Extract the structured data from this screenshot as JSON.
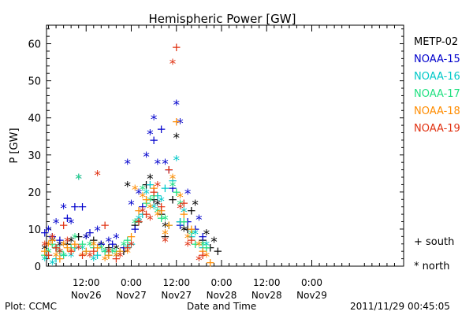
{
  "footer": {
    "plot_credit": "Plot: CCMC",
    "xlabel": "Date and Time",
    "timestamp": "2011/11/29 00:45:05"
  },
  "symbol_legend": [
    {
      "marker": "+",
      "label": "south"
    },
    {
      "marker": "*",
      "label": "north"
    }
  ],
  "chart_data": {
    "type": "scatter",
    "title": "Hemispheric Power [GW]",
    "xlabel": "Date and Time",
    "ylabel": "P [GW]",
    "ylim": [
      0,
      65
    ],
    "yticks": [
      0,
      10,
      20,
      30,
      40,
      50,
      60
    ],
    "x_hours": [
      0,
      96
    ],
    "xticks": [
      {
        "hour": 12,
        "time": "12:00",
        "date": "Nov26"
      },
      {
        "hour": 24,
        "time": "0:00",
        "date": "Nov27"
      },
      {
        "hour": 36,
        "time": "12:00",
        "date": "Nov27"
      },
      {
        "hour": 48,
        "time": "0:00",
        "date": "Nov28"
      },
      {
        "hour": 60,
        "time": "12:00",
        "date": "Nov28"
      },
      {
        "hour": 72,
        "time": "0:00",
        "date": "Nov29"
      }
    ],
    "grid": false,
    "legend_position": "right",
    "series": [
      {
        "name": "METP-02",
        "color": "#000000",
        "south": [
          [
            4,
            5
          ],
          [
            7,
            6
          ],
          [
            10,
            8
          ],
          [
            14,
            7
          ],
          [
            18,
            5
          ],
          [
            22,
            4
          ],
          [
            25,
            11
          ],
          [
            28,
            22
          ],
          [
            30,
            18
          ],
          [
            32,
            14
          ],
          [
            33,
            8
          ],
          [
            35,
            18
          ],
          [
            37,
            12
          ],
          [
            39,
            10
          ],
          [
            40,
            15
          ],
          [
            43,
            7
          ],
          [
            45,
            5
          ],
          [
            47,
            4
          ]
        ],
        "north": [
          [
            1,
            5
          ],
          [
            3,
            7
          ],
          [
            5,
            6
          ],
          [
            8,
            7
          ],
          [
            12,
            8
          ],
          [
            16,
            6
          ],
          [
            20,
            5
          ],
          [
            23,
            22
          ],
          [
            26,
            12
          ],
          [
            29,
            24
          ],
          [
            31,
            17
          ],
          [
            33,
            11
          ],
          [
            36,
            35
          ],
          [
            38,
            10
          ],
          [
            41,
            17
          ],
          [
            44,
            9
          ],
          [
            46,
            7
          ]
        ]
      },
      {
        "name": "NOAA-15",
        "color": "#0000cc",
        "south": [
          [
            1,
            9
          ],
          [
            3,
            8
          ],
          [
            5,
            7
          ],
          [
            7,
            13
          ],
          [
            9,
            16
          ],
          [
            11,
            16
          ],
          [
            13,
            9
          ],
          [
            16,
            6
          ],
          [
            19,
            6
          ],
          [
            22,
            5
          ],
          [
            25,
            10
          ],
          [
            27,
            16
          ],
          [
            30,
            34
          ],
          [
            32,
            37
          ],
          [
            34,
            26
          ],
          [
            35,
            21
          ],
          [
            37,
            11
          ],
          [
            39,
            12
          ],
          [
            41,
            10
          ],
          [
            43,
            8
          ]
        ],
        "north": [
          [
            2,
            10
          ],
          [
            4,
            12
          ],
          [
            6,
            16
          ],
          [
            8,
            12
          ],
          [
            10,
            24
          ],
          [
            12,
            8
          ],
          [
            15,
            10
          ],
          [
            18,
            7
          ],
          [
            20,
            8
          ],
          [
            23,
            28
          ],
          [
            24,
            17
          ],
          [
            26,
            20
          ],
          [
            28,
            30
          ],
          [
            29,
            36
          ],
          [
            30,
            40
          ],
          [
            31,
            28
          ],
          [
            33,
            28
          ],
          [
            36,
            44
          ],
          [
            37,
            39
          ],
          [
            39,
            20
          ],
          [
            42,
            13
          ]
        ]
      },
      {
        "name": "NOAA-16",
        "color": "#00c8c8",
        "south": [
          [
            2,
            3
          ],
          [
            4,
            2
          ],
          [
            6,
            3
          ],
          [
            9,
            5
          ],
          [
            12,
            4
          ],
          [
            15,
            3
          ],
          [
            18,
            3
          ],
          [
            21,
            4
          ],
          [
            24,
            6
          ],
          [
            27,
            14
          ],
          [
            29,
            22
          ],
          [
            31,
            19
          ],
          [
            33,
            21
          ],
          [
            35,
            23
          ],
          [
            37,
            12
          ],
          [
            40,
            8
          ],
          [
            43,
            5
          ]
        ],
        "north": [
          [
            1,
            2
          ],
          [
            3,
            1
          ],
          [
            5,
            4
          ],
          [
            8,
            3
          ],
          [
            11,
            5
          ],
          [
            14,
            2
          ],
          [
            17,
            4
          ],
          [
            20,
            3
          ],
          [
            23,
            5
          ],
          [
            26,
            13
          ],
          [
            28,
            20
          ],
          [
            30,
            16
          ],
          [
            32,
            18
          ],
          [
            36,
            29
          ],
          [
            38,
            15
          ],
          [
            41,
            9
          ],
          [
            44,
            6
          ]
        ]
      },
      {
        "name": "NOAA-17",
        "color": "#20e080",
        "south": [
          [
            1,
            3
          ],
          [
            3,
            6
          ],
          [
            5,
            4
          ],
          [
            8,
            5
          ],
          [
            11,
            6
          ],
          [
            14,
            5
          ],
          [
            17,
            4
          ],
          [
            20,
            4
          ],
          [
            23,
            7
          ],
          [
            26,
            12
          ],
          [
            28,
            17
          ],
          [
            30,
            19
          ],
          [
            32,
            13
          ],
          [
            34,
            11
          ],
          [
            36,
            20
          ],
          [
            38,
            12
          ],
          [
            41,
            6
          ],
          [
            44,
            5
          ]
        ],
        "north": [
          [
            2,
            4
          ],
          [
            4,
            5
          ],
          [
            6,
            3
          ],
          [
            9,
            8
          ],
          [
            10,
            24
          ],
          [
            13,
            6
          ],
          [
            16,
            5
          ],
          [
            19,
            4
          ],
          [
            22,
            6
          ],
          [
            25,
            12
          ],
          [
            27,
            21
          ],
          [
            29,
            18
          ],
          [
            31,
            15
          ],
          [
            33,
            13
          ],
          [
            35,
            22
          ],
          [
            37,
            17
          ],
          [
            40,
            9
          ],
          [
            43,
            6
          ]
        ]
      },
      {
        "name": "NOAA-18",
        "color": "#ff8c00",
        "south": [
          [
            1,
            4
          ],
          [
            3,
            7
          ],
          [
            5,
            2
          ],
          [
            7,
            5
          ],
          [
            9,
            6
          ],
          [
            12,
            4
          ],
          [
            15,
            5
          ],
          [
            18,
            3
          ],
          [
            21,
            4
          ],
          [
            24,
            8
          ],
          [
            26,
            15
          ],
          [
            28,
            18
          ],
          [
            30,
            21
          ],
          [
            32,
            15
          ],
          [
            34,
            11
          ],
          [
            36,
            39
          ],
          [
            38,
            14
          ],
          [
            40,
            10
          ],
          [
            43,
            4
          ],
          [
            45,
            1
          ]
        ],
        "north": [
          [
            2,
            6
          ],
          [
            4,
            3
          ],
          [
            6,
            6
          ],
          [
            8,
            4
          ],
          [
            11,
            3
          ],
          [
            14,
            6
          ],
          [
            17,
            2
          ],
          [
            20,
            3
          ],
          [
            23,
            4
          ],
          [
            25,
            21
          ],
          [
            27,
            19
          ],
          [
            29,
            16
          ],
          [
            31,
            14
          ],
          [
            33,
            9
          ],
          [
            35,
            24
          ],
          [
            37,
            19
          ],
          [
            39,
            8
          ],
          [
            42,
            6
          ],
          [
            44,
            3
          ]
        ]
      },
      {
        "name": "NOAA-19",
        "color": "#e03010",
        "south": [
          [
            2,
            3
          ],
          [
            4,
            5
          ],
          [
            6,
            11
          ],
          [
            8,
            4
          ],
          [
            11,
            3
          ],
          [
            14,
            4
          ],
          [
            17,
            11
          ],
          [
            20,
            2
          ],
          [
            23,
            5
          ],
          [
            26,
            12
          ],
          [
            28,
            14
          ],
          [
            30,
            20
          ],
          [
            32,
            16
          ],
          [
            34,
            26
          ],
          [
            36,
            59
          ],
          [
            38,
            17
          ],
          [
            40,
            7
          ],
          [
            43,
            3
          ]
        ],
        "north": [
          [
            1,
            6
          ],
          [
            3,
            8
          ],
          [
            5,
            4
          ],
          [
            7,
            7
          ],
          [
            10,
            5
          ],
          [
            13,
            3
          ],
          [
            15,
            25
          ],
          [
            18,
            4
          ],
          [
            21,
            3
          ],
          [
            24,
            6
          ],
          [
            27,
            15
          ],
          [
            29,
            13
          ],
          [
            31,
            22
          ],
          [
            33,
            7
          ],
          [
            35,
            55
          ],
          [
            37,
            16
          ],
          [
            39,
            6
          ],
          [
            42,
            2
          ]
        ]
      }
    ]
  }
}
